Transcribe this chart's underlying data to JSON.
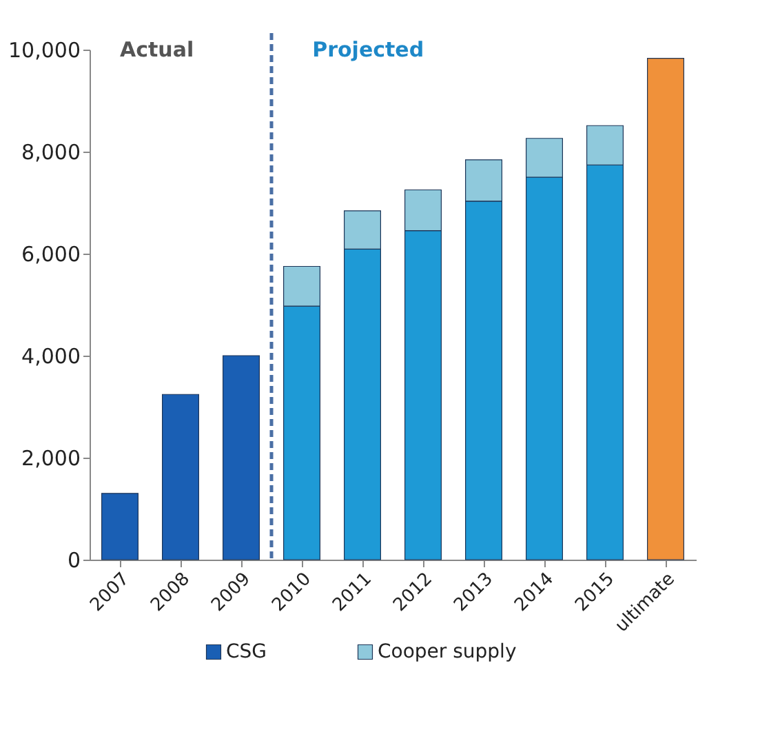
{
  "chart_data": {
    "type": "bar",
    "stacked": true,
    "categories": [
      "2007",
      "2008",
      "2009",
      "2010",
      "2011",
      "2012",
      "2013",
      "2014",
      "2015",
      "ultimate"
    ],
    "series": [
      {
        "name": "CSG",
        "color": "#1a5fb4",
        "colors": [
          "#1a5fb4",
          "#1a5fb4",
          "#1a5fb4",
          "#1e9ad6",
          "#1e9ad6",
          "#1e9ad6",
          "#1e9ad6",
          "#1e9ad6",
          "#1e9ad6",
          null
        ],
        "values": [
          1300,
          3240,
          4000,
          4970,
          6090,
          6450,
          7030,
          7500,
          7740,
          null
        ]
      },
      {
        "name": "Cooper supply",
        "color": "#8fc9dc",
        "values": [
          null,
          null,
          null,
          780,
          750,
          800,
          810,
          760,
          770,
          null
        ]
      },
      {
        "color": "#f0913a",
        "values": [
          null,
          null,
          null,
          null,
          null,
          null,
          null,
          null,
          null,
          9830
        ]
      }
    ],
    "ylim": [
      0,
      10000
    ],
    "yticks": [
      0,
      {
        "value": 2000,
        "label": "2,000"
      },
      {
        "value": 4000,
        "label": "4,000"
      },
      {
        "value": 6000,
        "label": "6,000"
      },
      {
        "value": 8000,
        "label": "8,000"
      },
      {
        "value": 10000,
        "label": "10,000"
      }
    ],
    "grid": false,
    "legend": "bottom",
    "annotations": [
      "Actual",
      "Projected"
    ],
    "ref_lines": [
      {
        "axis": "x",
        "value": "2010",
        "line_style": "dashed",
        "color": "#4a6fa5"
      }
    ]
  }
}
